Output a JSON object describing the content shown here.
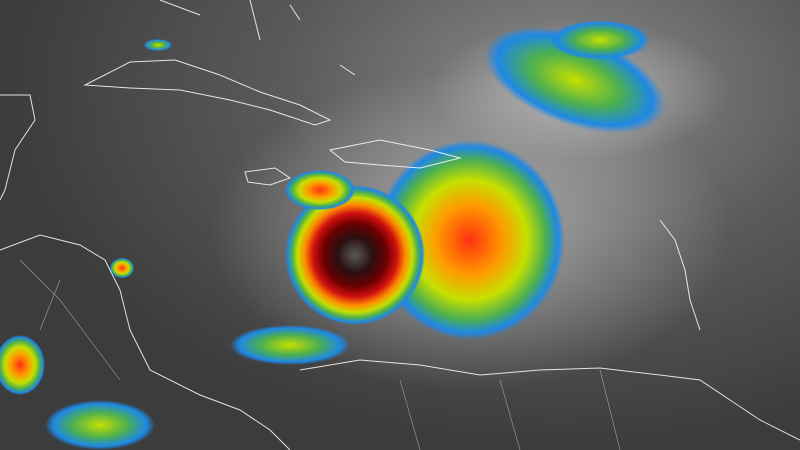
{
  "imagery": {
    "type": "infrared satellite",
    "colormap": [
      "#1a1a1a",
      "#0a2a8c",
      "#1e88e5",
      "#4caf50",
      "#c6e000",
      "#ff9a00",
      "#e01010",
      "#6a0000",
      "#2a2a2a"
    ],
    "background_color": "#3c3c3c",
    "coastline_color": "#ffffff"
  }
}
